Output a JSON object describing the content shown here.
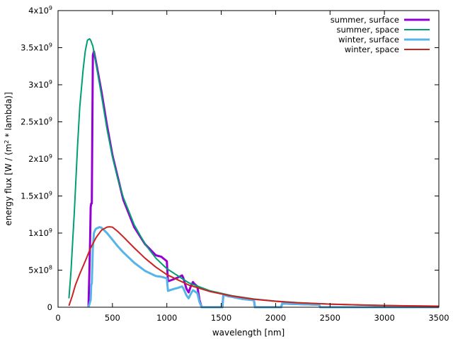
{
  "chart_data": {
    "type": "line",
    "xlabel": "wavelength [nm]",
    "ylabel": "energy flux [W / (m² * lambda)]",
    "xlim": [
      0,
      3500
    ],
    "ylim": [
      0,
      4000000000
    ],
    "x_ticks": [
      0,
      500,
      1000,
      1500,
      2000,
      2500,
      3000,
      3500
    ],
    "y_ticks": [
      {
        "value": 0,
        "base": "0",
        "exp": ""
      },
      {
        "value": 500000000,
        "base": "5x10",
        "exp": "8"
      },
      {
        "value": 1000000000,
        "base": "1x10",
        "exp": "9"
      },
      {
        "value": 1500000000,
        "base": "1.5x10",
        "exp": "9"
      },
      {
        "value": 2000000000,
        "base": "2x10",
        "exp": "9"
      },
      {
        "value": 2500000000,
        "base": "2.5x10",
        "exp": "9"
      },
      {
        "value": 3000000000,
        "base": "3x10",
        "exp": "9"
      },
      {
        "value": 3500000000,
        "base": "3.5x10",
        "exp": "9"
      },
      {
        "value": 4000000000,
        "base": "4x10",
        "exp": "9"
      }
    ],
    "grid": false,
    "legend_position": "top-right",
    "series": [
      {
        "name": "summer, surface",
        "color": "#9400d3",
        "x": [
          280,
          285,
          290,
          295,
          300,
          305,
          310,
          320,
          330,
          350,
          400,
          450,
          500,
          550,
          600,
          700,
          800,
          900,
          950,
          1000,
          1010,
          1050,
          1100,
          1140,
          1150,
          1180,
          1200,
          1220,
          1240,
          1250,
          1280,
          1300,
          1320,
          1400,
          1500,
          1510,
          1520,
          1550,
          1560,
          1600,
          1700,
          1800,
          1810,
          1820,
          1850,
          1900,
          2000,
          2050,
          2060,
          2100,
          2200,
          2300,
          2400,
          2410,
          2500,
          2600,
          2800,
          3000,
          3200,
          3500
        ],
        "y": [
          0,
          300000000,
          600000000,
          900000000,
          1350000000,
          1400000000,
          1400000000,
          3400000000,
          3450000000,
          3300000000,
          2900000000,
          2450000000,
          2050000000,
          1750000000,
          1450000000,
          1080000000,
          850000000,
          700000000,
          680000000,
          620000000,
          350000000,
          370000000,
          400000000,
          430000000,
          400000000,
          250000000,
          200000000,
          280000000,
          340000000,
          320000000,
          280000000,
          100000000,
          0,
          0,
          0,
          0,
          170000000,
          160000000,
          150000000,
          140000000,
          110000000,
          95000000,
          0,
          0,
          0,
          0,
          0,
          0,
          50000000,
          48000000,
          43000000,
          38000000,
          33000000,
          0,
          0,
          0,
          0,
          0,
          0,
          0
        ]
      },
      {
        "name": "summer, space",
        "color": "#009e73",
        "x": [
          100,
          120,
          150,
          180,
          200,
          230,
          250,
          270,
          290,
          300,
          320,
          350,
          400,
          450,
          500,
          550,
          600,
          700,
          800,
          900,
          1000,
          1200,
          1400,
          1600,
          1800,
          2000,
          2200,
          2500,
          2800,
          3000,
          3200,
          3500
        ],
        "y": [
          120000000,
          500000000,
          1300000000,
          2200000000,
          2700000000,
          3200000000,
          3450000000,
          3600000000,
          3620000000,
          3600000000,
          3520000000,
          3280000000,
          2850000000,
          2400000000,
          2030000000,
          1730000000,
          1480000000,
          1110000000,
          850000000,
          660000000,
          520000000,
          330000000,
          220000000,
          155000000,
          110000000,
          82000000,
          62000000,
          42000000,
          29000000,
          23000000,
          18000000,
          13000000
        ]
      },
      {
        "name": "winter, surface",
        "color": "#56b4e9",
        "x": [
          280,
          290,
          300,
          305,
          310,
          320,
          330,
          340,
          350,
          380,
          400,
          450,
          500,
          550,
          600,
          700,
          800,
          900,
          950,
          1000,
          1010,
          1050,
          1100,
          1140,
          1150,
          1180,
          1200,
          1220,
          1240,
          1250,
          1280,
          1300,
          1320,
          1400,
          1500,
          1510,
          1520,
          1550,
          1600,
          1700,
          1800,
          1810,
          1820,
          1850,
          1900,
          2000,
          2050,
          2060,
          2100,
          2200,
          2300,
          2400,
          2410,
          2500,
          2600,
          2800,
          3000,
          3200,
          3500
        ],
        "y": [
          0,
          50000000,
          100000000,
          300000000,
          320000000,
          800000000,
          1000000000,
          1040000000,
          1060000000,
          1080000000,
          1070000000,
          1000000000,
          910000000,
          820000000,
          740000000,
          600000000,
          490000000,
          420000000,
          410000000,
          390000000,
          220000000,
          240000000,
          260000000,
          280000000,
          260000000,
          160000000,
          120000000,
          180000000,
          230000000,
          220000000,
          190000000,
          70000000,
          0,
          0,
          0,
          0,
          165000000,
          155000000,
          140000000,
          110000000,
          95000000,
          0,
          0,
          0,
          0,
          0,
          0,
          50000000,
          48000000,
          43000000,
          38000000,
          33000000,
          0,
          0,
          0,
          0,
          0,
          0,
          0
        ]
      },
      {
        "name": "winter, space",
        "color": "#cc2222",
        "x": [
          100,
          130,
          160,
          200,
          250,
          300,
          350,
          400,
          450,
          470,
          500,
          550,
          600,
          700,
          800,
          900,
          1000,
          1200,
          1400,
          1600,
          1800,
          2000,
          2200,
          2500,
          2800,
          3000,
          3200,
          3500
        ],
        "y": [
          20000000,
          150000000,
          300000000,
          450000000,
          620000000,
          800000000,
          940000000,
          1040000000,
          1080000000,
          1085000000,
          1080000000,
          1020000000,
          950000000,
          800000000,
          660000000,
          540000000,
          440000000,
          300000000,
          210000000,
          150000000,
          108000000,
          80000000,
          60000000,
          42000000,
          30000000,
          24000000,
          19000000,
          14000000
        ]
      }
    ]
  }
}
